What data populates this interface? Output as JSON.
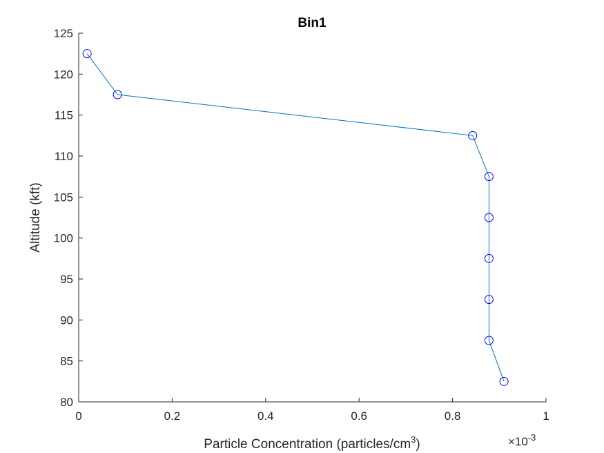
{
  "chart_data": {
    "type": "line",
    "title": "Bin1",
    "xlabel_main": "Particle Concentration (particles/cm",
    "xlabel_exponent": "3",
    "xlabel_close": ")",
    "ylabel": "Altitude (kft)",
    "x_multiplier_base": "×10",
    "x_multiplier_exponent": "-3",
    "xlim": [
      0,
      1
    ],
    "ylim": [
      80,
      125
    ],
    "xticks": [
      0,
      0.2,
      0.4,
      0.6,
      0.8,
      1
    ],
    "xtick_labels": [
      "0",
      "0.2",
      "0.4",
      "0.6",
      "0.8",
      "1"
    ],
    "yticks": [
      80,
      85,
      90,
      95,
      100,
      105,
      110,
      115,
      120,
      125
    ],
    "ytick_labels": [
      "80",
      "85",
      "90",
      "95",
      "100",
      "105",
      "110",
      "115",
      "120",
      "125"
    ],
    "grid": false,
    "series": [
      {
        "x": [
          0.018,
          0.083,
          0.843,
          0.878,
          0.878,
          0.878,
          0.878,
          0.878,
          0.91
        ],
        "y": [
          122.5,
          117.5,
          112.5,
          107.5,
          102.5,
          97.5,
          92.5,
          87.5,
          82.5
        ],
        "line_color": "#0072BD",
        "marker_color": "#0000FF",
        "marker": "circle"
      }
    ]
  }
}
